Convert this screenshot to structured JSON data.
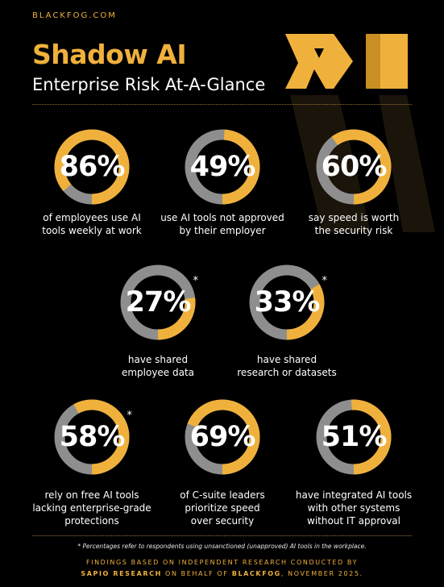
{
  "brand": "BLACKFOG.COM",
  "title": "Shadow AI",
  "subtitle": "Enterprise Risk At-A-Glance",
  "colors": {
    "accent": "#f0b13c",
    "track": "#8e8e8e",
    "background": "#000000"
  },
  "chart_data": {
    "type": "donut",
    "items": [
      {
        "value": 86,
        "label": "86%",
        "caption_lines": [
          "of employees use AI",
          "tools weekly at work"
        ],
        "asterisk": false
      },
      {
        "value": 49,
        "label": "49%",
        "caption_lines": [
          "use AI tools not approved",
          "by their employer"
        ],
        "asterisk": false
      },
      {
        "value": 60,
        "label": "60%",
        "caption_lines": [
          "say speed is worth",
          "the security risk"
        ],
        "asterisk": false
      },
      {
        "value": 27,
        "label": "27%",
        "caption_lines": [
          "have shared",
          "employee data"
        ],
        "asterisk": true
      },
      {
        "value": 33,
        "label": "33%",
        "caption_lines": [
          "have shared",
          "research or datasets"
        ],
        "asterisk": true
      },
      {
        "value": 58,
        "label": "58%",
        "caption_lines": [
          "rely on free AI tools",
          "lacking enterprise-grade",
          "protections"
        ],
        "asterisk": true
      },
      {
        "value": 69,
        "label": "69%",
        "caption_lines": [
          "of C-suite leaders",
          "prioritize speed",
          "over security"
        ],
        "asterisk": false
      },
      {
        "value": 51,
        "label": "51%",
        "caption_lines": [
          "have integrated AI tools",
          "with other systems",
          "without IT approval"
        ],
        "asterisk": false
      }
    ]
  },
  "asterisk_mark": "*",
  "footnote": "* Percentages refer to respondents using unsanctioned (unapproved) AI tools in the workplace.",
  "findings": {
    "line1": "FINDINGS BASED ON INDEPENDENT RESEARCH CONDUCTED BY",
    "line2_strong1": "SAPIO RESEARCH",
    "line2_mid": " ON BEHALF OF ",
    "line2_strong2": "BLACKFOG",
    "line2_end": ", NOVEMBER 2025."
  }
}
